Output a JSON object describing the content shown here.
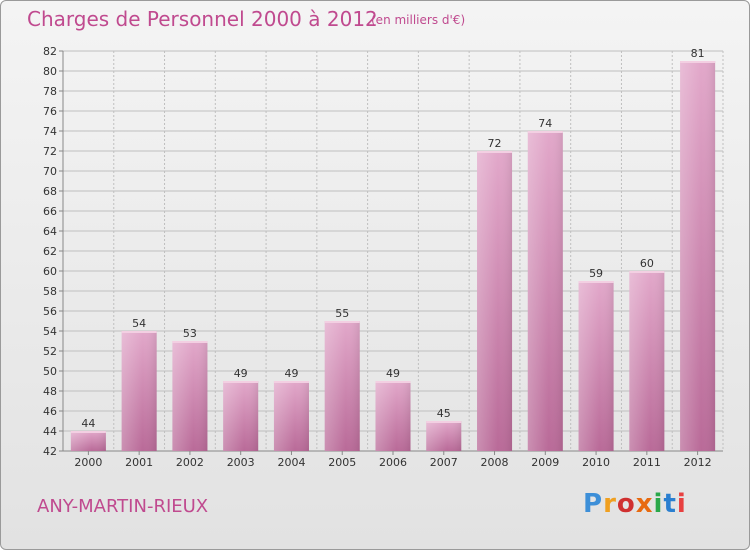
{
  "header": {
    "title": "Charges de Personnel 2000 à 2012",
    "subtitle": "(en milliers d'€)"
  },
  "footer": {
    "commune": "ANY-MARTIN-RIEUX",
    "logo_text": "Proxiti",
    "logo_colors": [
      "#3d8fd8",
      "#f0a020",
      "#d03030",
      "#e86a10",
      "#2aa84a",
      "#2a7fd0",
      "#e84040"
    ]
  },
  "colors": {
    "bar": "#c879a9",
    "bar_light": "#e0a5c8",
    "grid": "#bfbfbf",
    "axis": "#888888",
    "text_accent": "#c04a8f"
  },
  "chart_data": {
    "type": "bar",
    "title": "Charges de Personnel 2000 à 2012",
    "subtitle": "(en milliers d'€)",
    "categories": [
      "2000",
      "2001",
      "2002",
      "2003",
      "2004",
      "2005",
      "2006",
      "2007",
      "2008",
      "2009",
      "2010",
      "2011",
      "2012"
    ],
    "values": [
      44,
      54,
      53,
      49,
      49,
      55,
      49,
      45,
      72,
      74,
      59,
      60,
      81
    ],
    "ylim": [
      42,
      82
    ],
    "yticks": [
      42,
      44,
      46,
      48,
      50,
      52,
      54,
      56,
      58,
      60,
      62,
      64,
      66,
      68,
      70,
      72,
      74,
      76,
      78,
      80,
      82
    ],
    "grid": true,
    "legend": "none"
  }
}
